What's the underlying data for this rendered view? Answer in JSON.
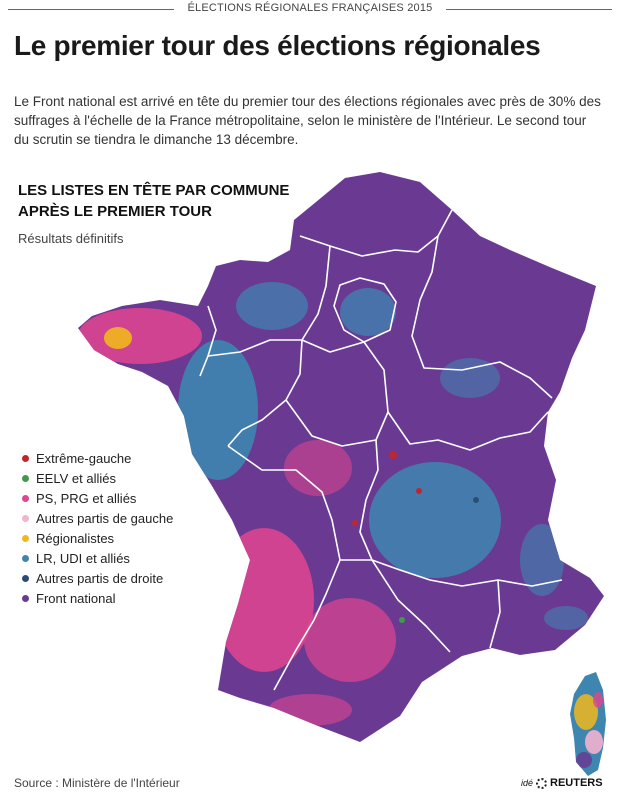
{
  "header": {
    "kicker": "ÉLECTIONS RÉGIONALES FRANÇAISES 2015",
    "title": "Le premier tour des élections régionales",
    "intro": "Le Front national est arrivé en tête du premier tour des élections régionales avec près de 30% des suffrages à l'échelle de la France métropolitaine, selon le ministère de l'Intérieur. Le second tour du scrutin se tiendra le dimanche 13 décembre."
  },
  "map": {
    "title": "LES LISTES EN TÊTE PAR COMMUNE APRÈS LE PREMIER TOUR",
    "subtitle": "Résultats définitifs",
    "legend": [
      {
        "label": "Extrême-gauche",
        "color": "#c0262d"
      },
      {
        "label": "EELV et alliés",
        "color": "#3f9a4d"
      },
      {
        "label": "PS, PRG et alliés",
        "color": "#e0458f"
      },
      {
        "label": "Autres partis de gauche",
        "color": "#f2b3cf"
      },
      {
        "label": "Régionalistes",
        "color": "#f1b71c"
      },
      {
        "label": "LR, UDI et alliés",
        "color": "#3e86b0"
      },
      {
        "label": "Autres partis de droite",
        "color": "#2a4e72"
      },
      {
        "label": "Front national",
        "color": "#6a3a93"
      }
    ]
  },
  "footer": {
    "source": "Source : Ministère de l'Intérieur",
    "credit_prefix": "idé",
    "credit": "REUTERS"
  }
}
